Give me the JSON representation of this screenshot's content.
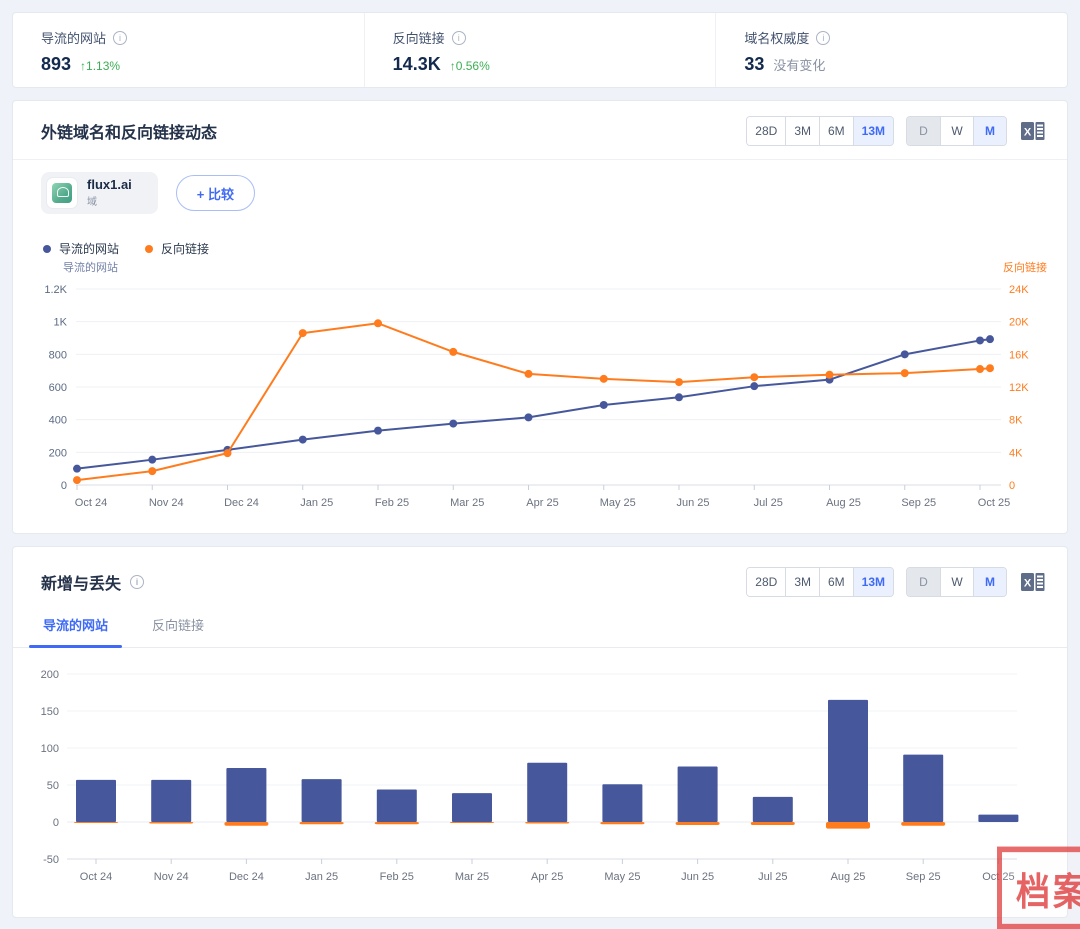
{
  "stats": {
    "cards": [
      {
        "label": "导流的网站",
        "value": "893",
        "change": "↑1.13%",
        "change_type": "up"
      },
      {
        "label": "反向链接",
        "value": "14.3K",
        "change": "↑0.56%",
        "change_type": "up"
      },
      {
        "label": "域名权威度",
        "value": "33",
        "change": "没有变化",
        "change_type": "none"
      }
    ]
  },
  "controls": {
    "periods": [
      "28D",
      "3M",
      "6M",
      "13M"
    ],
    "selected_period": "13M",
    "granularities": [
      "D",
      "W",
      "M"
    ],
    "selected_granularity": "M",
    "disabled_granularity": "D",
    "export_icon": "excel-export-icon"
  },
  "dynamics_section": {
    "title": "外链域名和反向链接动态",
    "domain_chip": {
      "name": "flux1.ai",
      "type_label": "域"
    },
    "compare_button": "+ 比较",
    "legend": [
      {
        "label": "导流的网站",
        "color": "#46589b"
      },
      {
        "label": "反向链接",
        "color": "#ff7c1e"
      }
    ]
  },
  "newlost_section": {
    "title": "新增与丢失",
    "tabs": [
      "导流的网站",
      "反向链接"
    ],
    "active_tab": "导流的网站"
  },
  "chart_data": [
    {
      "type": "line",
      "title": "外链域名和反向链接动态",
      "x": [
        "Oct 24",
        "Nov 24",
        "Dec 24",
        "Jan 25",
        "Feb 25",
        "Mar 25",
        "Apr 25",
        "May 25",
        "Jun 25",
        "Jul 25",
        "Aug 25",
        "Sep 25",
        "Oct 25"
      ],
      "note": "14th value of each series is the latest partial-month point drawn just right of Oct 25",
      "series": [
        {
          "name": "导流的网站",
          "axis": "left",
          "color": "#46589b",
          "values": [
            100,
            155,
            215,
            278,
            333,
            376,
            414,
            490,
            537,
            605,
            645,
            800,
            885,
            893
          ]
        },
        {
          "name": "反向链接",
          "axis": "right",
          "color": "#ff7c1e",
          "values": [
            600,
            1700,
            3900,
            18600,
            19800,
            16300,
            13600,
            13000,
            12600,
            13200,
            13500,
            13700,
            14200,
            14300
          ]
        }
      ],
      "left_axis": {
        "title": "导流的网站",
        "range": [
          0,
          1200
        ],
        "ticks": [
          "0",
          "200",
          "400",
          "600",
          "800",
          "1K",
          "1.2K"
        ]
      },
      "right_axis": {
        "title": "反向链接",
        "range": [
          0,
          24000
        ],
        "ticks": [
          "0",
          "4K",
          "8K",
          "12K",
          "16K",
          "20K",
          "24K"
        ]
      },
      "grid": true,
      "legend_position": "top-left"
    },
    {
      "type": "bar",
      "title": "新增与丢失 — 导流的网站",
      "categories": [
        "Oct 24",
        "Nov 24",
        "Dec 24",
        "Jan 25",
        "Feb 25",
        "Mar 25",
        "Apr 25",
        "May 25",
        "Jun 25",
        "Jul 25",
        "Aug 25",
        "Sep 25",
        "Oct 25"
      ],
      "series": [
        {
          "name": "新增",
          "color": "#46589b",
          "values": [
            57,
            57,
            73,
            58,
            44,
            39,
            80,
            51,
            75,
            34,
            165,
            91,
            10
          ]
        },
        {
          "name": "丢失",
          "color": "#ff7c1e",
          "values": [
            -1,
            -2,
            -5,
            -3,
            -3,
            -1,
            -2,
            -3,
            -4,
            -4,
            -9,
            -5,
            0
          ]
        }
      ],
      "ylim": [
        -50,
        200
      ],
      "yticks": [
        "-50",
        "0",
        "50",
        "100",
        "150",
        "200"
      ],
      "grid": true
    }
  ],
  "watermark": {
    "text": "档案",
    "color": "#df3c3c"
  },
  "colors": {
    "accent_blue": "#3f6af5",
    "series_blue": "#46589b",
    "series_orange": "#ff7c1e",
    "positive_green": "#3cae54",
    "page_background": "#eff2f8"
  }
}
